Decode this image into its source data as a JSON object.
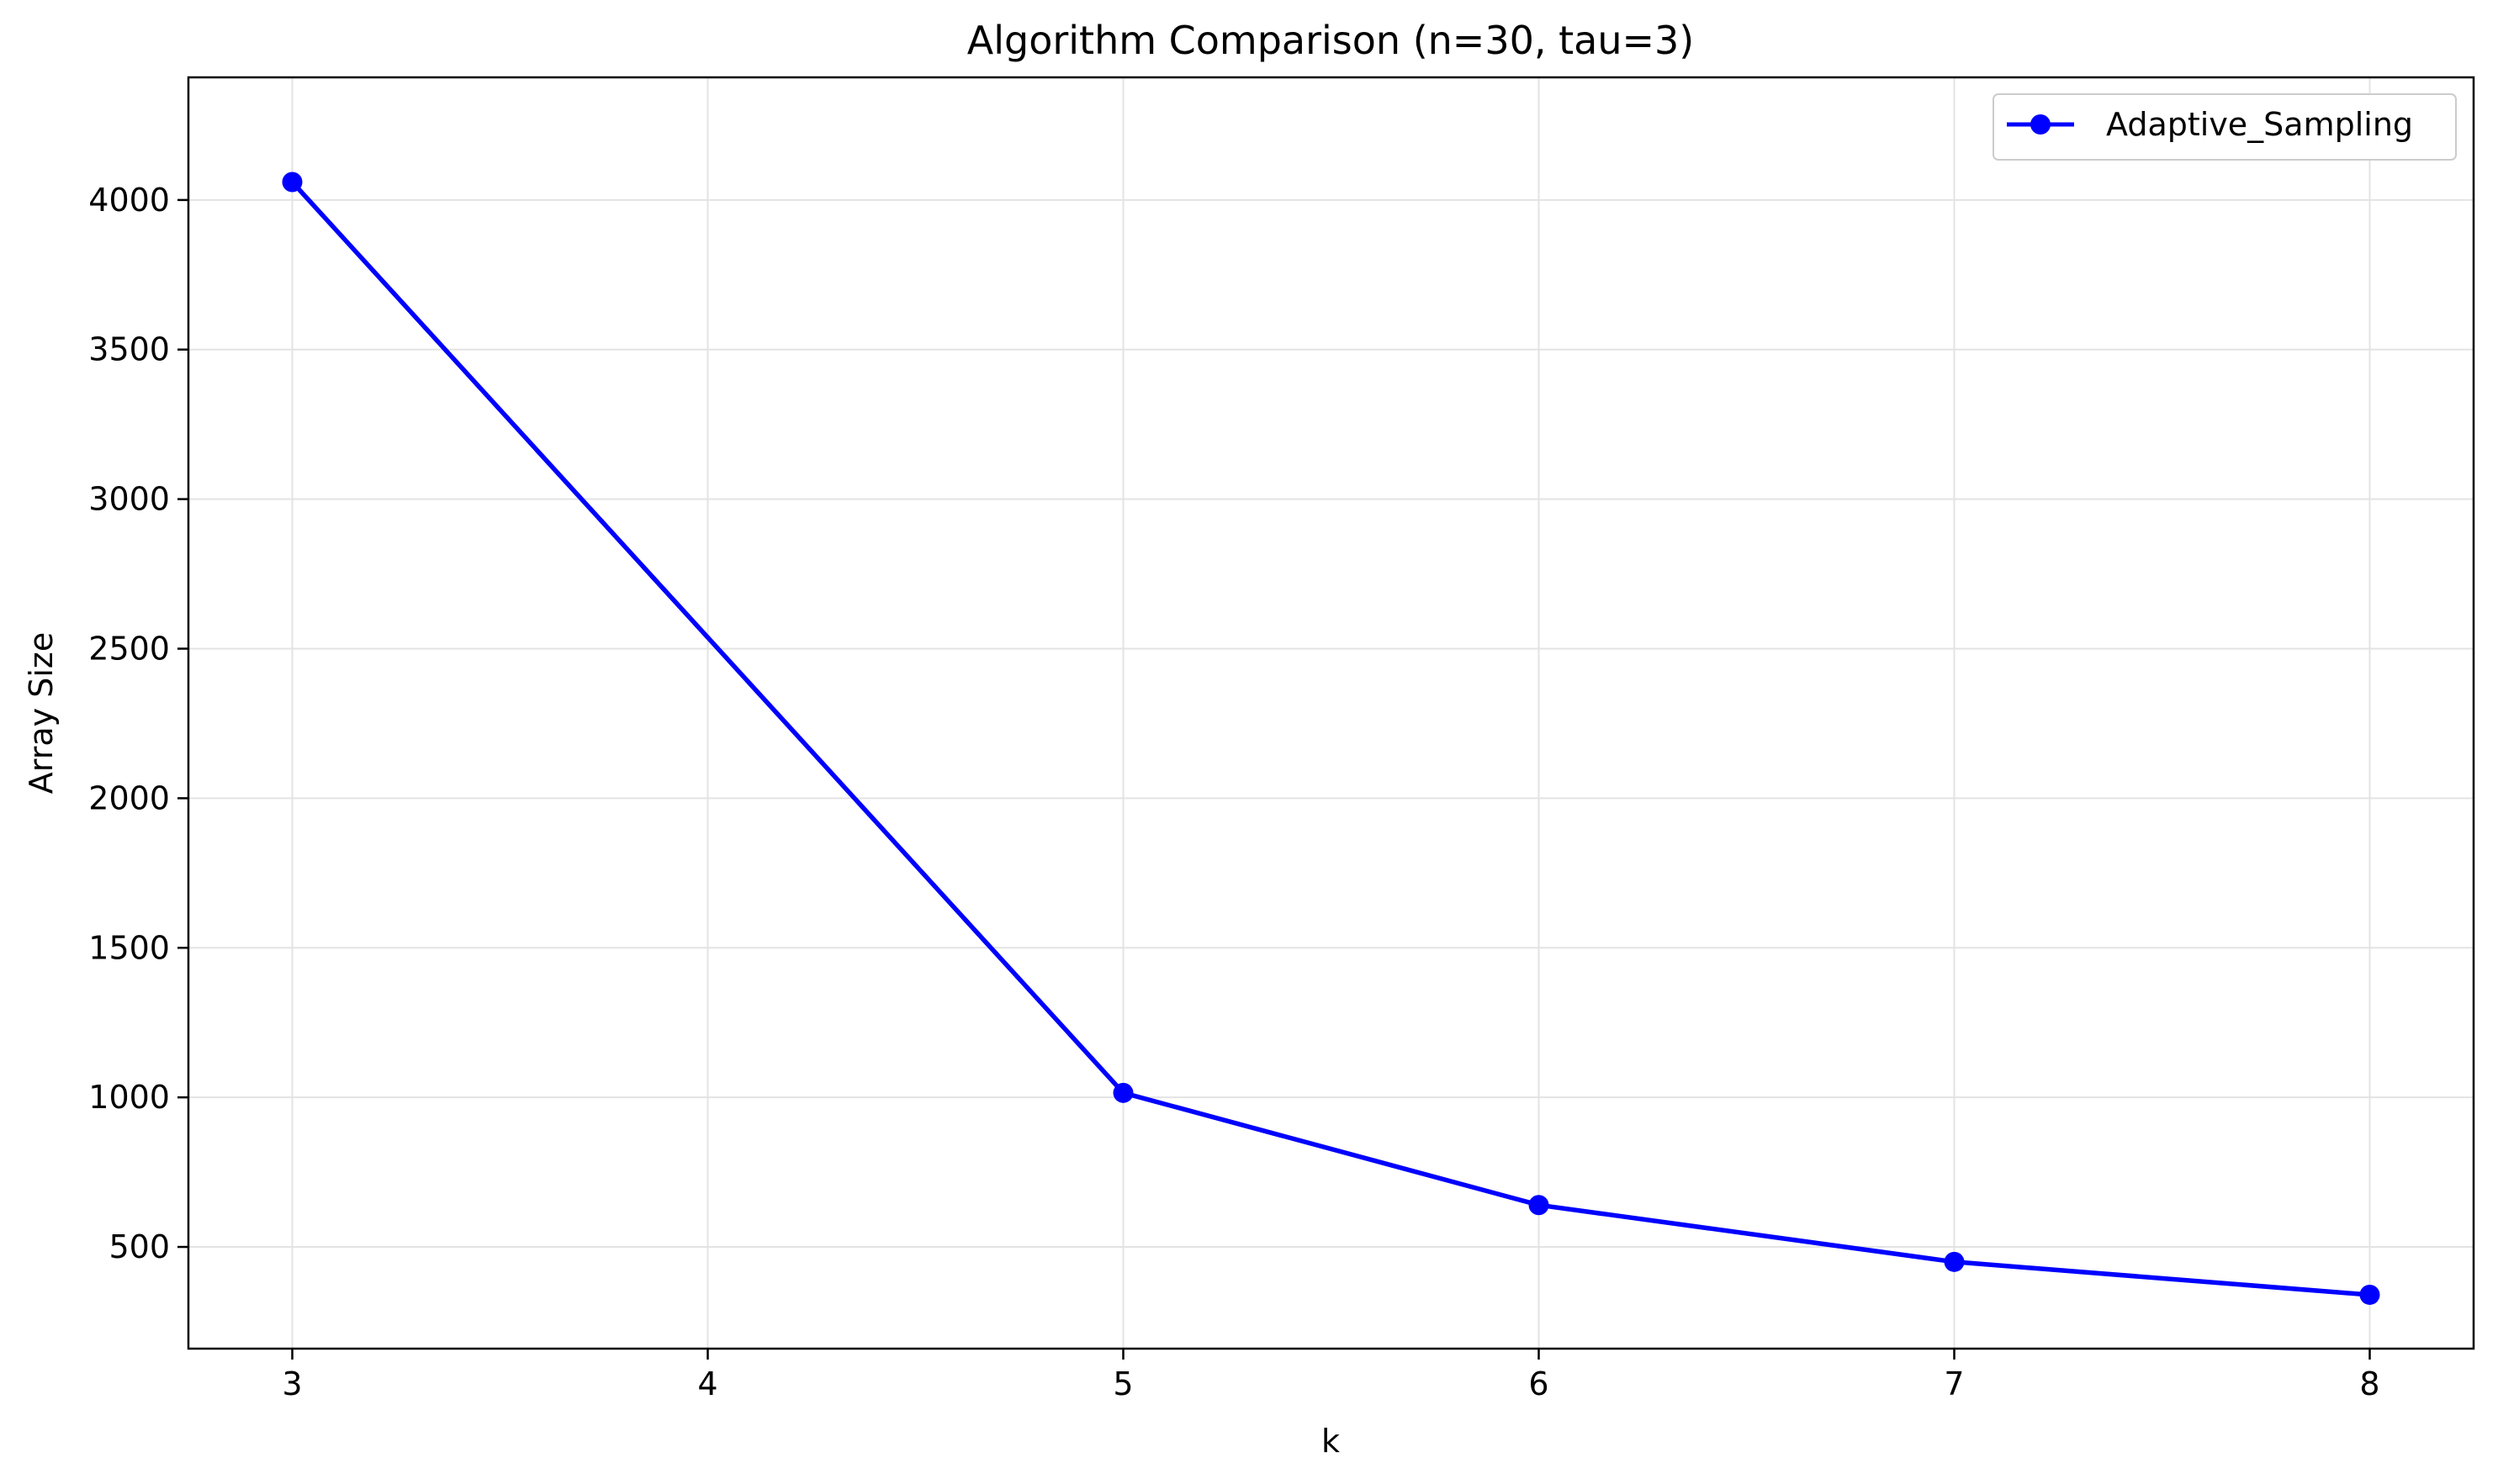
{
  "chart_data": {
    "type": "line",
    "title": "Algorithm Comparison (n=30, tau=3)",
    "xlabel": "k",
    "ylabel": "Array Size",
    "x_ticks": [
      3,
      4,
      5,
      6,
      7,
      8
    ],
    "y_ticks": [
      500,
      1000,
      1500,
      2000,
      2500,
      3000,
      3500,
      4000
    ],
    "xlim": [
      2.75,
      8.25
    ],
    "ylim": [
      160,
      4410
    ],
    "grid": true,
    "legend_position": "top-right",
    "series": [
      {
        "name": "Adaptive_Sampling",
        "color": "#0000ff",
        "marker": "circle",
        "x": [
          3,
          5,
          6,
          7,
          8
        ],
        "y": [
          4060,
          1015,
          640,
          450,
          340
        ]
      }
    ]
  }
}
